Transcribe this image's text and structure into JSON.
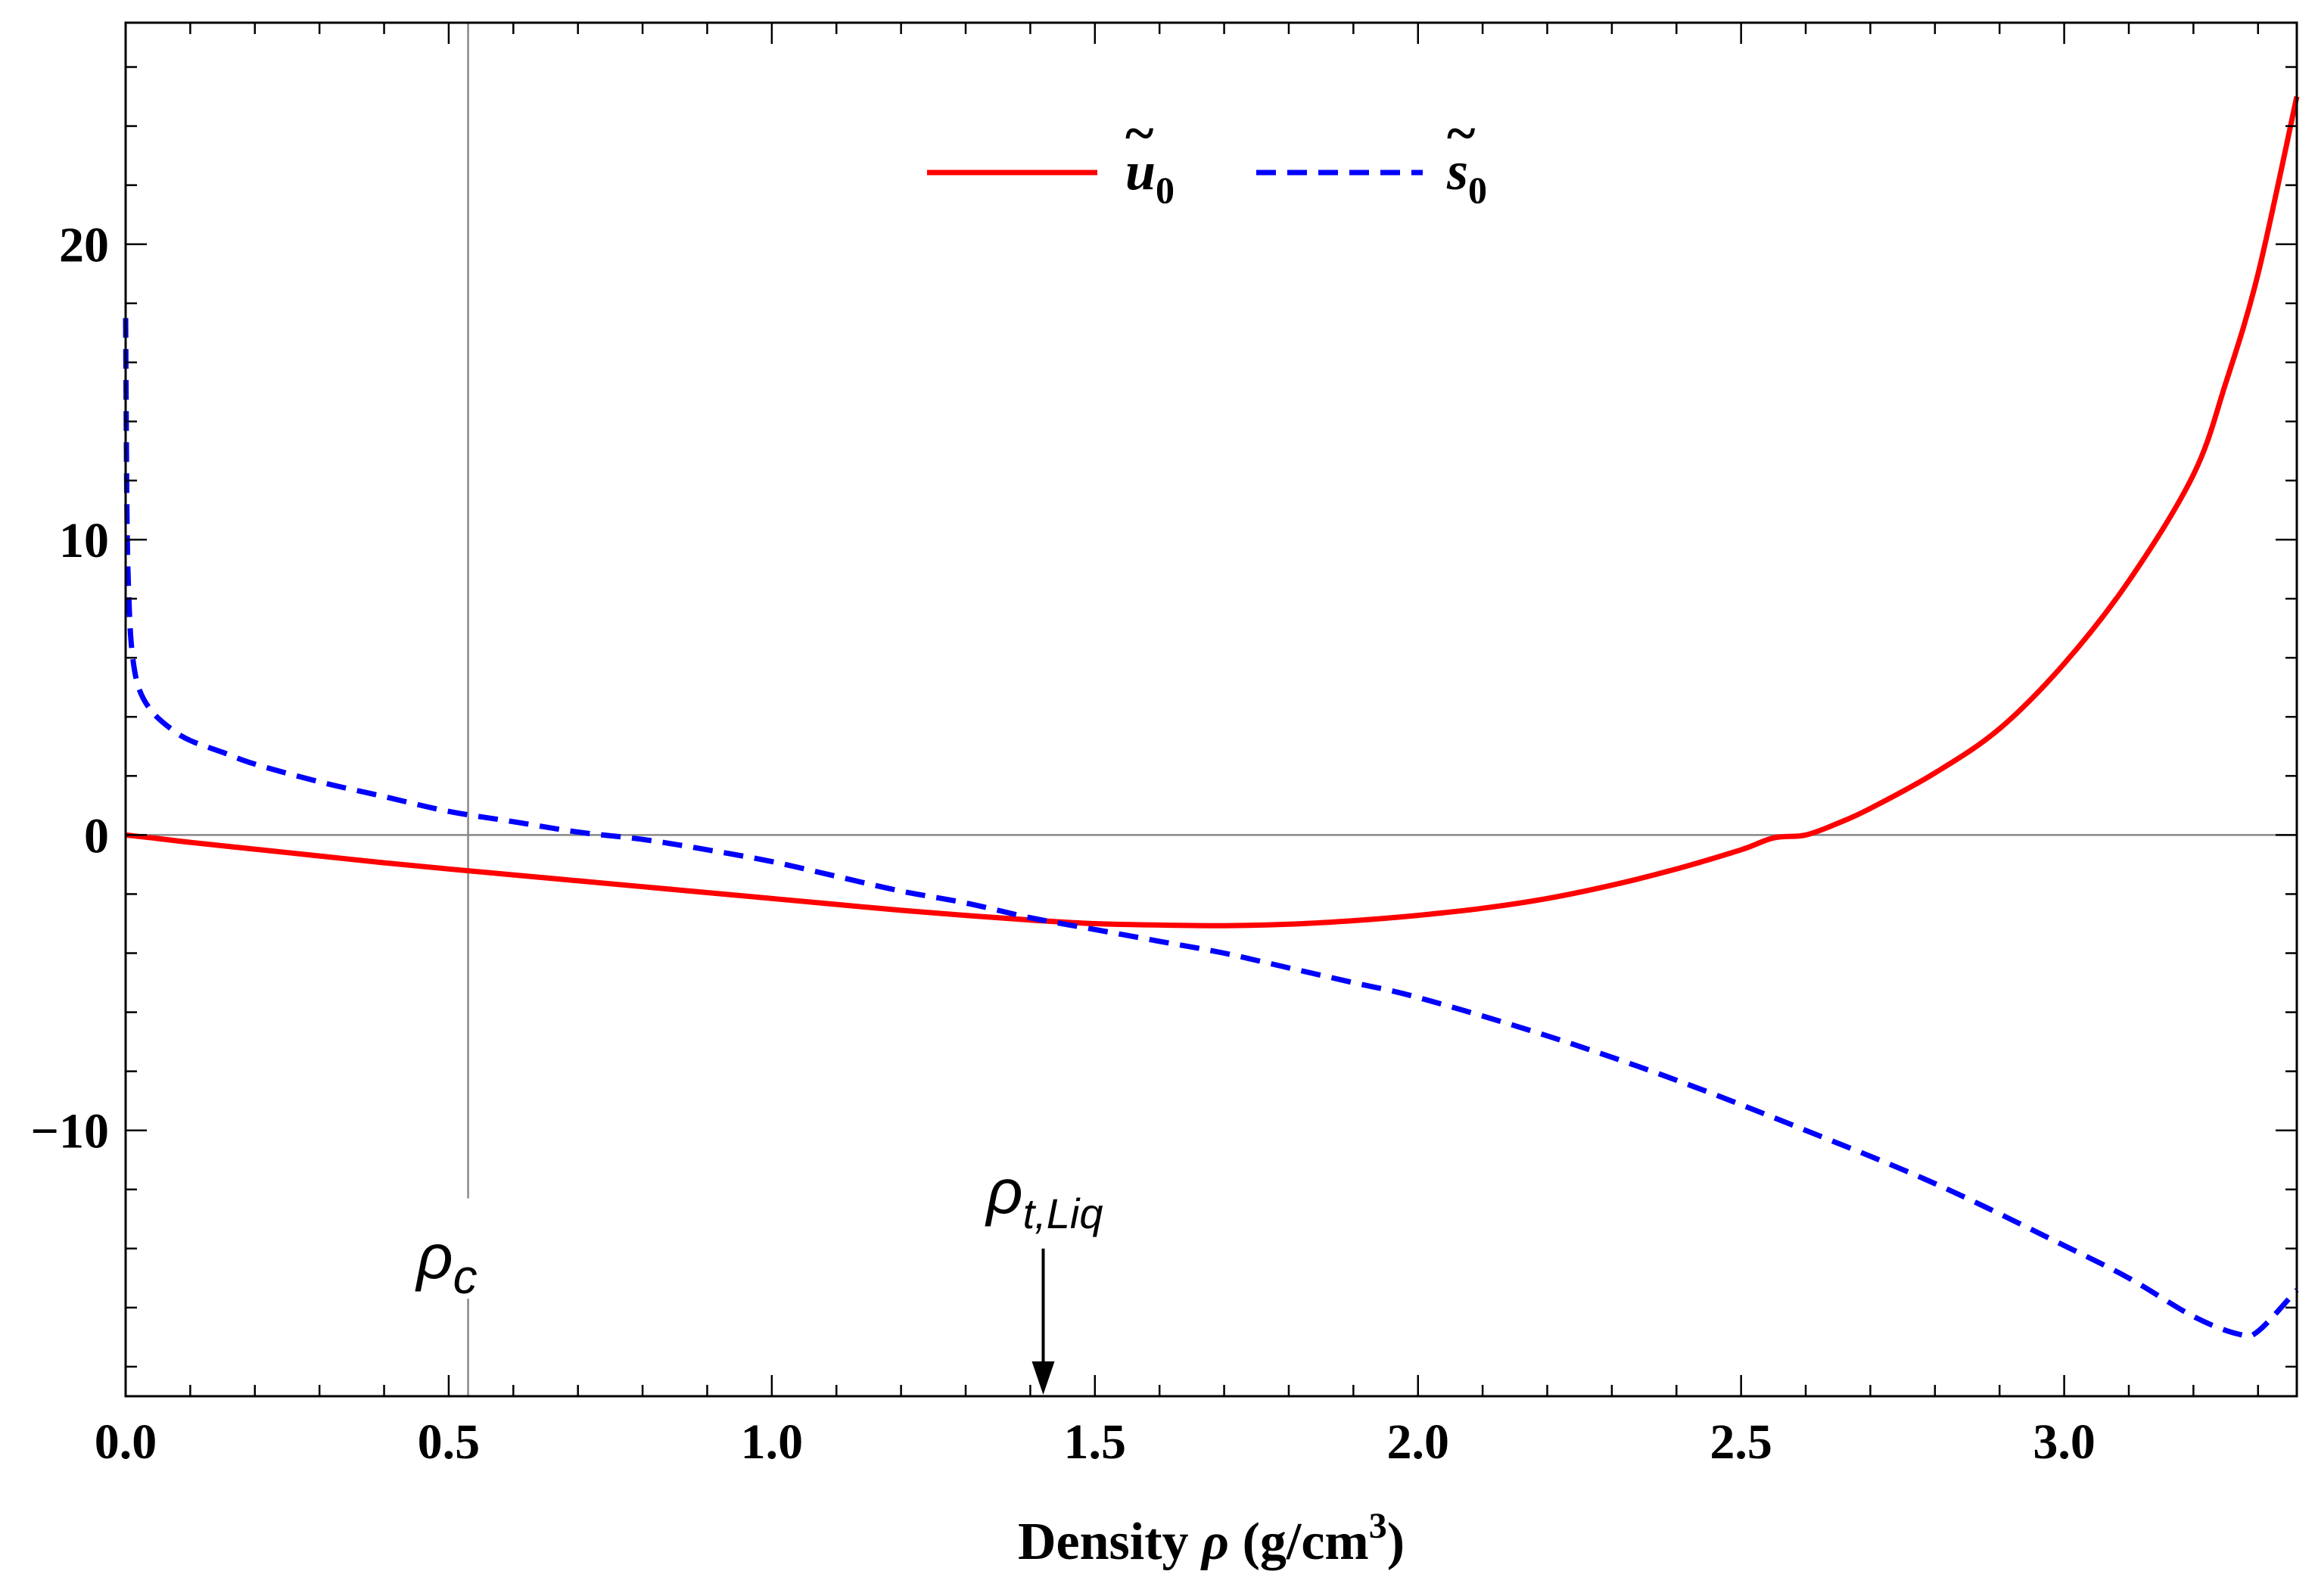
{
  "chart_data": {
    "type": "line",
    "title": "",
    "xlabel": "Density ρ (g/cm³)",
    "xlabel_parts": {
      "prefix": "Density ",
      "symbol": "ρ",
      "unit_open": " (g/cm",
      "unit_exp": "3",
      "unit_close": ")"
    },
    "ylabel": "",
    "xlim": [
      0,
      3.36
    ],
    "ylim": [
      -19,
      27.5
    ],
    "x_ticks": [
      0.0,
      0.5,
      1.0,
      1.5,
      2.0,
      2.5,
      3.0
    ],
    "x_tick_labels": [
      "0.0",
      "0.5",
      "1.0",
      "1.5",
      "2.0",
      "2.5",
      "3.0"
    ],
    "y_ticks": [
      -10,
      0,
      10,
      20
    ],
    "y_tick_labels": [
      "−10",
      "0",
      "10",
      "20"
    ],
    "grid": false,
    "legend_position": "top-center",
    "colors": {
      "u0": "#ff0000",
      "s0": "#0000ff",
      "reference": "#888888",
      "arrow": "#000000"
    },
    "series": [
      {
        "name": "ũ0",
        "legend_base": "u",
        "legend_sub": "0",
        "style": "solid",
        "x": [
          0.0,
          0.05,
          0.1,
          0.2,
          0.3,
          0.4,
          0.5,
          0.6,
          0.7,
          0.8,
          0.9,
          1.0,
          1.1,
          1.2,
          1.3,
          1.4,
          1.5,
          1.6,
          1.7,
          1.8,
          1.9,
          2.0,
          2.1,
          2.2,
          2.3,
          2.4,
          2.5,
          2.55,
          2.6,
          2.65,
          2.7,
          2.8,
          2.9,
          3.0,
          3.1,
          3.2,
          3.25,
          3.3,
          3.36
        ],
        "values": [
          0.0,
          -0.12,
          -0.25,
          -0.48,
          -0.71,
          -0.94,
          -1.15,
          -1.35,
          -1.55,
          -1.75,
          -1.95,
          -2.15,
          -2.35,
          -2.55,
          -2.72,
          -2.88,
          -3.0,
          -3.05,
          -3.07,
          -3.02,
          -2.9,
          -2.72,
          -2.48,
          -2.15,
          -1.7,
          -1.15,
          -0.5,
          -0.1,
          0.0,
          0.4,
          0.9,
          2.1,
          3.6,
          5.8,
          8.6,
          12.2,
          15.3,
          19.0,
          25.0
        ]
      },
      {
        "name": "s̃0",
        "legend_base": "s",
        "legend_sub": "0",
        "style": "dashed",
        "x": [
          0.0,
          0.002,
          0.005,
          0.01,
          0.02,
          0.04,
          0.07,
          0.1,
          0.15,
          0.2,
          0.3,
          0.4,
          0.5,
          0.6,
          0.7,
          0.8,
          0.9,
          1.0,
          1.1,
          1.2,
          1.3,
          1.4,
          1.5,
          1.6,
          1.7,
          1.8,
          1.9,
          2.0,
          2.2,
          2.4,
          2.6,
          2.8,
          3.0,
          3.1,
          3.2,
          3.27,
          3.3,
          3.36
        ],
        "values": [
          17.5,
          11.0,
          8.0,
          6.2,
          5.0,
          4.2,
          3.6,
          3.2,
          2.8,
          2.4,
          1.8,
          1.3,
          0.8,
          0.45,
          0.1,
          -0.15,
          -0.5,
          -0.9,
          -1.4,
          -1.9,
          -2.3,
          -2.8,
          -3.2,
          -3.6,
          -4.0,
          -4.5,
          -5.0,
          -5.5,
          -6.8,
          -8.3,
          -10.0,
          -11.8,
          -13.9,
          -15.0,
          -16.3,
          -16.9,
          -16.8,
          -15.4
        ]
      }
    ],
    "reference_lines": [
      {
        "orientation": "vertical",
        "x": 0.53,
        "label": "ρc",
        "label_base": "ρ",
        "label_sub": "c"
      },
      {
        "orientation": "horizontal",
        "y": 0
      }
    ],
    "annotations": [
      {
        "text": "ρt,Liq",
        "label_base": "ρ",
        "label_sub": "t,Liq",
        "x": 1.42,
        "y_from": -14.0,
        "y_to": -19.0,
        "marker": "arrow"
      }
    ]
  }
}
